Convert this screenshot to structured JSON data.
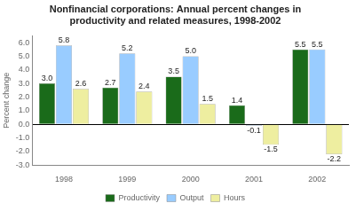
{
  "chart_data": {
    "type": "bar",
    "title": "Nonfinancial corporations: Annual percent changes in\nproductivity and related measures, 1998-2002",
    "categories": [
      "1998",
      "1999",
      "2000",
      "2001",
      "2002"
    ],
    "series": [
      {
        "name": "Productivity",
        "color": "#1a6b1a",
        "values": [
          3.0,
          2.7,
          3.5,
          1.4,
          5.5
        ],
        "value_labels": [
          "3.0",
          "2.7",
          "3.5",
          "1.4",
          "5.5"
        ]
      },
      {
        "name": "Output",
        "color": "#99ccff",
        "values": [
          5.8,
          5.2,
          5.0,
          -0.1,
          5.5
        ],
        "value_labels": [
          "5.8",
          "5.2",
          "5.0",
          "-0.1",
          "5.5"
        ]
      },
      {
        "name": "Hours",
        "color": "#eeeea0",
        "values": [
          2.6,
          2.4,
          1.5,
          -1.5,
          -2.2
        ],
        "value_labels": [
          "2.6",
          "2.4",
          "1.5",
          "-1.5",
          "-2.2"
        ]
      }
    ],
    "ylabel": "Percent change",
    "ylim": [
      -3.0,
      6.5
    ],
    "yticks": [
      {
        "value": -3.0,
        "label": "-3.0"
      },
      {
        "value": -2.0,
        "label": "-2.0"
      },
      {
        "value": -1.0,
        "label": "-1.0"
      },
      {
        "value": 0.0,
        "label": "0.0"
      },
      {
        "value": 1.0,
        "label": "1.0"
      },
      {
        "value": 2.0,
        "label": "2.0"
      },
      {
        "value": 3.0,
        "label": "3.0"
      },
      {
        "value": 4.0,
        "label": "4.0"
      },
      {
        "value": 5.0,
        "label": "5.0"
      },
      {
        "value": 6.0,
        "label": "6.0"
      }
    ],
    "grid": false,
    "legend": "bottom",
    "data_labels": true
  }
}
